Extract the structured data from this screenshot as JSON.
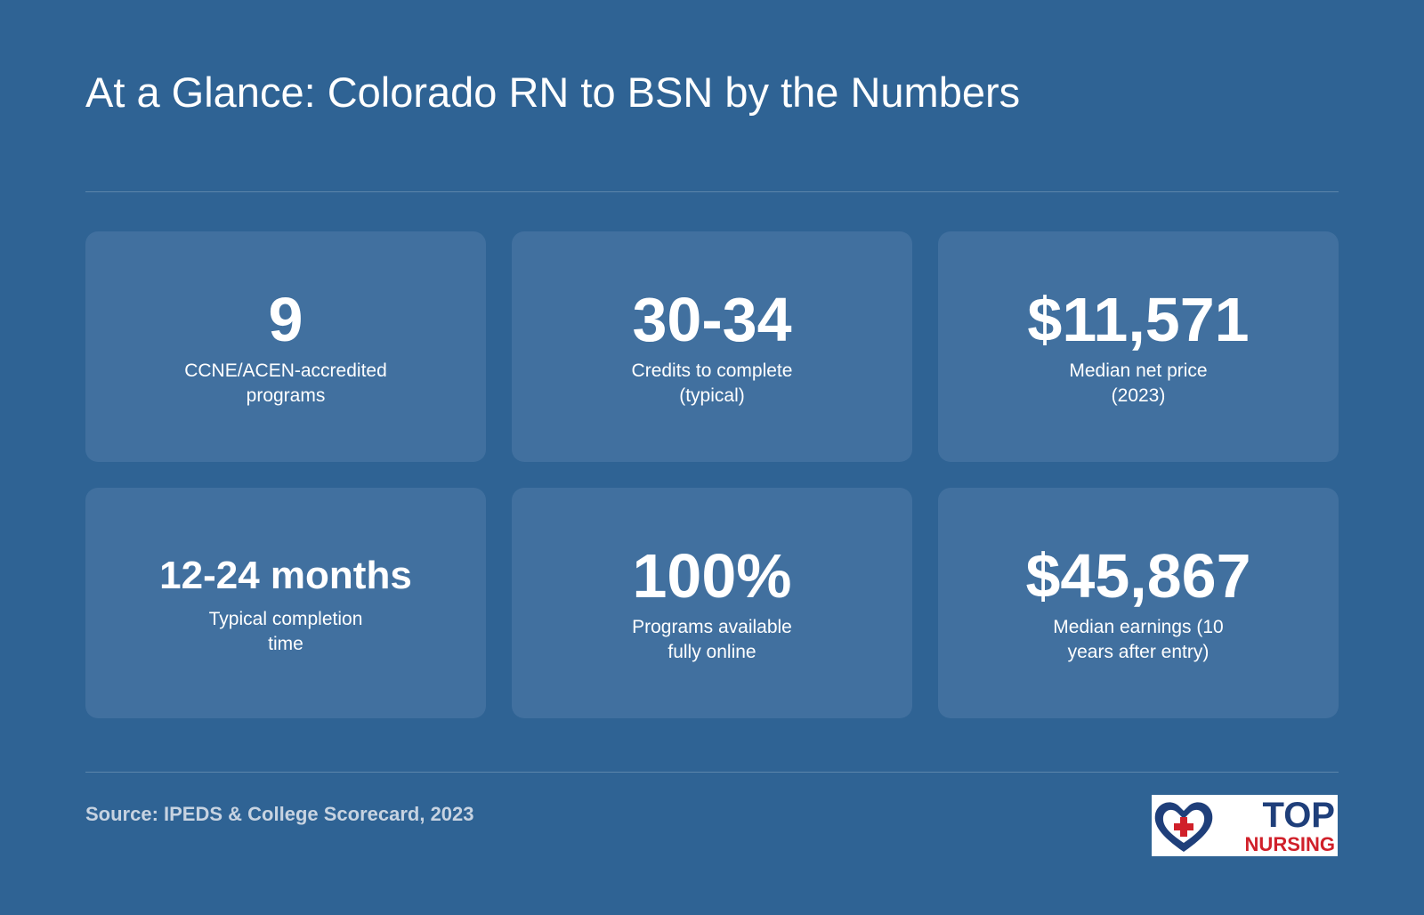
{
  "header": {
    "title": "At a Glance: Colorado RN to BSN by the Numbers"
  },
  "cards": [
    {
      "value": "9",
      "label_lines": [
        "CCNE/ACEN-accredited",
        "programs"
      ]
    },
    {
      "value": "30-34",
      "label_lines": [
        "Credits to complete",
        "(typical)"
      ]
    },
    {
      "value": "$11,571",
      "label_lines": [
        "Median net price",
        "(2023)"
      ]
    },
    {
      "value": "12-24 months",
      "label_lines": [
        "Typical completion",
        "time"
      ]
    },
    {
      "value": "100%",
      "label_lines": [
        "Programs available",
        "fully online"
      ]
    },
    {
      "value": "$45,867",
      "label_lines": [
        "Median earnings (10",
        "years after entry)"
      ]
    }
  ],
  "footer": {
    "source": "Source: IPEDS & College Scorecard, 2023",
    "logo": {
      "line1": "TOP",
      "line2": "NURSING"
    }
  }
}
